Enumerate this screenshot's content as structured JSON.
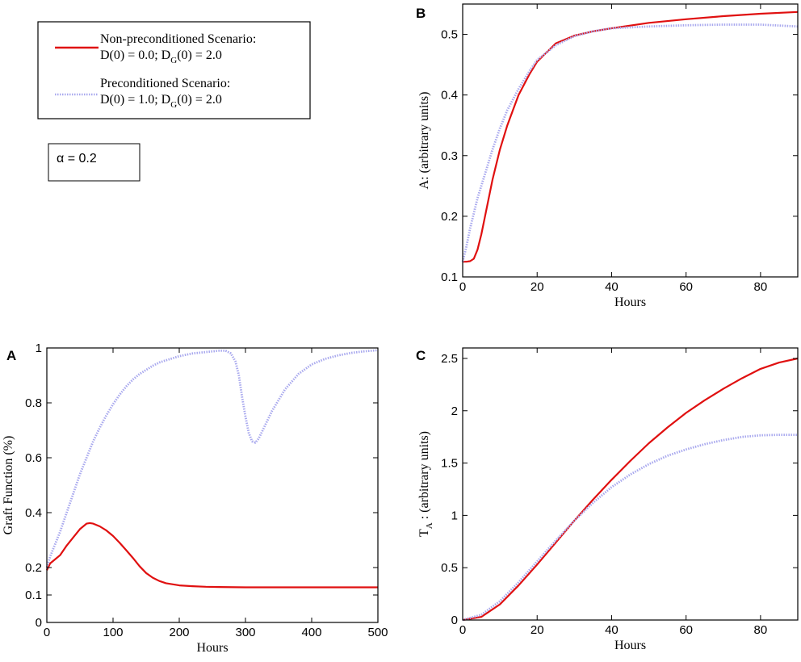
{
  "colors": {
    "non_preconditioned": "#e01010",
    "preconditioned": "#a8a8ee",
    "axis": "#000000"
  },
  "legend": {
    "entries": [
      {
        "line1": "Non-preconditioned Scenario:",
        "d0": "D(0) = 0.0; D",
        "sub": "G",
        "dg": "(0) = 2.0"
      },
      {
        "line1": "Preconditioned Scenario:",
        "d0": "D(0) = 1.0; D",
        "sub": "G",
        "dg": "(0) = 2.0"
      }
    ]
  },
  "alpha_box": {
    "label": "α = 0.2"
  },
  "chart_data": [
    {
      "panel": "A",
      "type": "line",
      "title": "",
      "xlabel": "Hours",
      "ylabel": "Graft Function (%)",
      "xlim": [
        0,
        500
      ],
      "ylim": [
        0,
        1
      ],
      "xticks": [
        0,
        100,
        200,
        300,
        400,
        500
      ],
      "yticks": [
        0,
        0.1,
        0.2,
        0.4,
        0.6,
        0.8,
        1
      ],
      "yticklabels": [
        "0",
        "0.1",
        "0.2",
        "0.4",
        "0.6",
        "0.8",
        "1"
      ],
      "series": [
        {
          "name": "Non-preconditioned Scenario",
          "style": "solid",
          "x": [
            0,
            2,
            5,
            10,
            20,
            30,
            40,
            50,
            60,
            65,
            70,
            80,
            90,
            100,
            110,
            120,
            130,
            140,
            150,
            160,
            170,
            180,
            200,
            220,
            240,
            260,
            300,
            350,
            400,
            450,
            500
          ],
          "y": [
            0.19,
            0.2,
            0.215,
            0.225,
            0.245,
            0.28,
            0.31,
            0.34,
            0.36,
            0.362,
            0.36,
            0.35,
            0.335,
            0.315,
            0.29,
            0.263,
            0.235,
            0.205,
            0.18,
            0.163,
            0.151,
            0.143,
            0.135,
            0.132,
            0.13,
            0.129,
            0.128,
            0.128,
            0.128,
            0.128,
            0.128
          ]
        },
        {
          "name": "Preconditioned Scenario",
          "style": "dotted",
          "x": [
            0,
            5,
            10,
            20,
            30,
            40,
            50,
            60,
            70,
            80,
            90,
            100,
            110,
            120,
            130,
            140,
            150,
            160,
            170,
            180,
            200,
            220,
            240,
            260,
            270,
            278,
            285,
            290,
            295,
            300,
            305,
            310,
            315,
            320,
            330,
            340,
            360,
            380,
            400,
            420,
            440,
            460,
            480,
            500
          ],
          "y": [
            0.2,
            0.24,
            0.27,
            0.33,
            0.4,
            0.47,
            0.54,
            0.6,
            0.66,
            0.71,
            0.755,
            0.795,
            0.83,
            0.86,
            0.885,
            0.905,
            0.92,
            0.935,
            0.947,
            0.955,
            0.97,
            0.98,
            0.985,
            0.99,
            0.99,
            0.98,
            0.95,
            0.9,
            0.82,
            0.75,
            0.69,
            0.66,
            0.655,
            0.67,
            0.72,
            0.77,
            0.85,
            0.905,
            0.94,
            0.96,
            0.973,
            0.982,
            0.988,
            0.992
          ]
        }
      ]
    },
    {
      "panel": "B",
      "type": "line",
      "title": "",
      "xlabel": "Hours",
      "ylabel": "A: (arbitrary units)",
      "xlim": [
        0,
        90
      ],
      "ylim": [
        0.1,
        0.55
      ],
      "xticks": [
        0,
        20,
        40,
        60,
        80
      ],
      "yticks": [
        0.1,
        0.2,
        0.3,
        0.4,
        0.5
      ],
      "yticklabels": [
        "0.1",
        "0.2",
        "0.3",
        "0.4",
        "0.5"
      ],
      "series": [
        {
          "name": "Non-preconditioned Scenario",
          "style": "solid",
          "x": [
            0,
            1,
            2,
            3,
            4,
            5,
            6,
            8,
            10,
            12,
            15,
            18,
            20,
            25,
            30,
            35,
            40,
            50,
            60,
            70,
            80,
            90
          ],
          "y": [
            0.125,
            0.125,
            0.126,
            0.13,
            0.145,
            0.17,
            0.2,
            0.26,
            0.31,
            0.35,
            0.4,
            0.435,
            0.455,
            0.485,
            0.498,
            0.505,
            0.51,
            0.519,
            0.525,
            0.53,
            0.534,
            0.537
          ]
        },
        {
          "name": "Preconditioned Scenario",
          "style": "dotted",
          "x": [
            0,
            1,
            2,
            4,
            6,
            8,
            10,
            12,
            15,
            18,
            20,
            25,
            30,
            35,
            40,
            50,
            60,
            70,
            80,
            90
          ],
          "y": [
            0.125,
            0.15,
            0.18,
            0.23,
            0.27,
            0.31,
            0.345,
            0.375,
            0.41,
            0.44,
            0.458,
            0.482,
            0.497,
            0.505,
            0.51,
            0.513,
            0.515,
            0.516,
            0.516,
            0.513
          ]
        }
      ]
    },
    {
      "panel": "C",
      "type": "line",
      "title": "",
      "xlabel": "Hours",
      "ylabel": "T",
      "ylabel_sub": "A",
      "ylabel_rest": " : (arbitrary units)",
      "xlim": [
        0,
        90
      ],
      "ylim": [
        0,
        2.6
      ],
      "xticks": [
        0,
        20,
        40,
        60,
        80
      ],
      "yticks": [
        0,
        0.5,
        1,
        1.5,
        2,
        2.5
      ],
      "yticklabels": [
        "0",
        "0.5",
        "1",
        "1.5",
        "2",
        "2.5"
      ],
      "series": [
        {
          "name": "Non-preconditioned Scenario",
          "style": "solid",
          "x": [
            0,
            5,
            10,
            15,
            20,
            25,
            30,
            35,
            40,
            45,
            50,
            55,
            60,
            65,
            70,
            75,
            80,
            85,
            90
          ],
          "y": [
            0,
            0.03,
            0.15,
            0.33,
            0.53,
            0.74,
            0.95,
            1.15,
            1.34,
            1.52,
            1.69,
            1.84,
            1.98,
            2.1,
            2.21,
            2.31,
            2.4,
            2.46,
            2.5
          ]
        },
        {
          "name": "Preconditioned Scenario",
          "style": "dotted",
          "x": [
            0,
            5,
            10,
            15,
            20,
            25,
            30,
            35,
            40,
            45,
            50,
            55,
            60,
            65,
            70,
            75,
            80,
            85,
            90
          ],
          "y": [
            0,
            0.05,
            0.18,
            0.36,
            0.56,
            0.76,
            0.95,
            1.12,
            1.27,
            1.39,
            1.49,
            1.57,
            1.63,
            1.68,
            1.72,
            1.75,
            1.765,
            1.77,
            1.77
          ]
        }
      ]
    }
  ]
}
